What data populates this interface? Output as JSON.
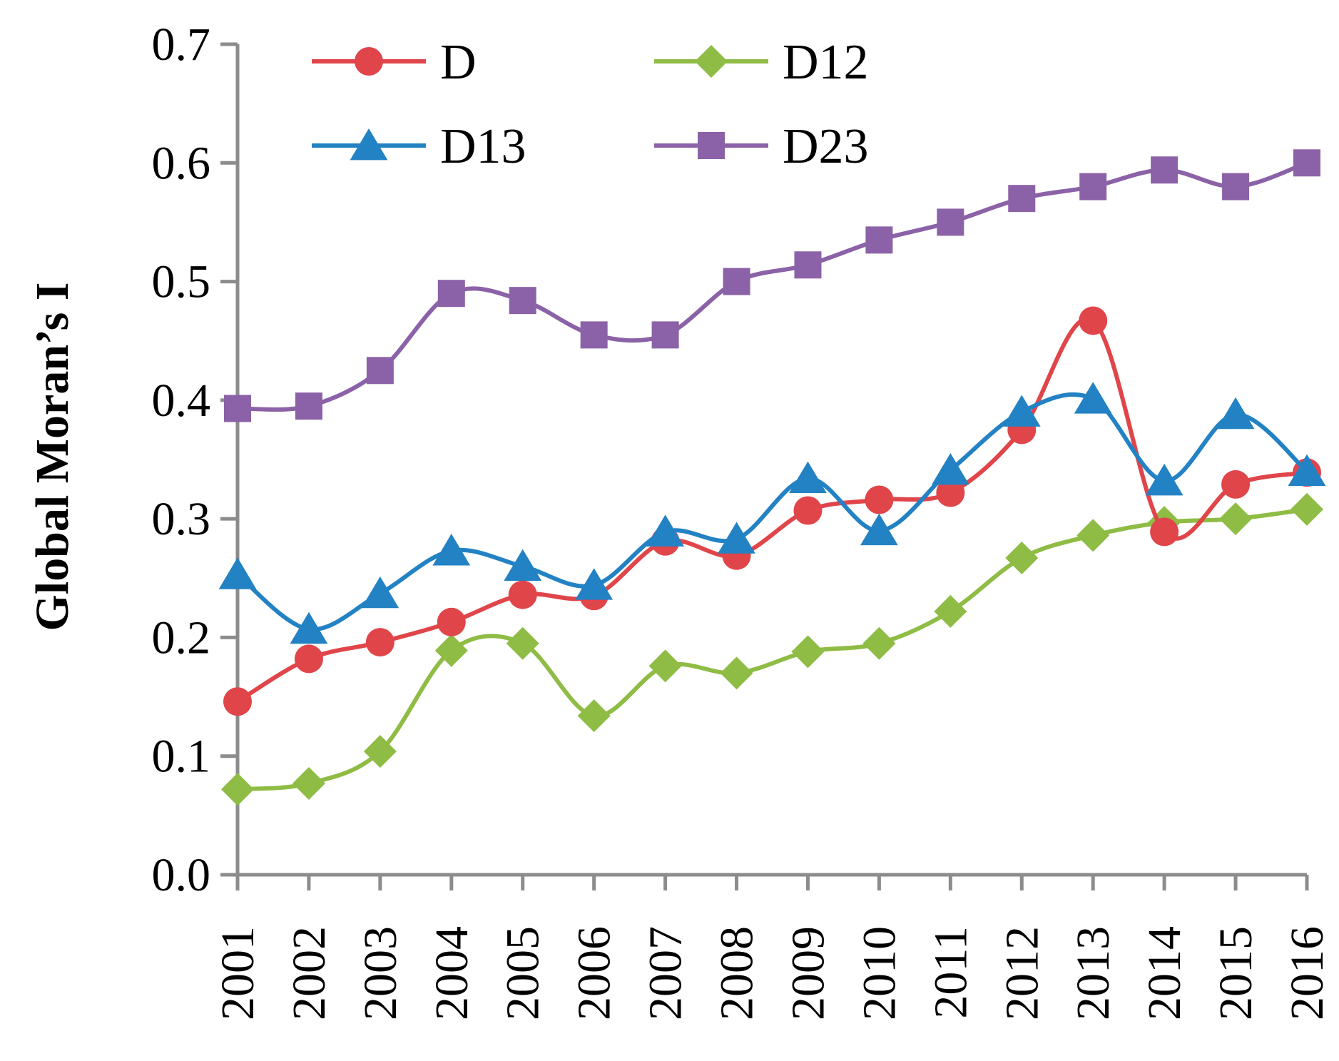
{
  "chart_data": {
    "type": "line",
    "title": "",
    "xlabel": "",
    "ylabel": "Global Moran’s I",
    "ylim": [
      0,
      0.7
    ],
    "yticks": [
      "0.0",
      "0.1",
      "0.2",
      "0.3",
      "0.4",
      "0.5",
      "0.6",
      "0.7"
    ],
    "categories": [
      "2001",
      "2002",
      "2003",
      "2004",
      "2005",
      "2006",
      "2007",
      "2008",
      "2009",
      "2010",
      "2011",
      "2012",
      "2013",
      "2014",
      "2015",
      "2016"
    ],
    "grid": false,
    "legend_position": "top-left",
    "series": [
      {
        "name": "D",
        "color": "#e0454a",
        "marker": "circle",
        "values": [
          0.146,
          0.182,
          0.196,
          0.213,
          0.236,
          0.235,
          0.281,
          0.269,
          0.307,
          0.316,
          0.322,
          0.375,
          0.467,
          0.289,
          0.329,
          0.339
        ]
      },
      {
        "name": "D12",
        "color": "#8fbc45",
        "marker": "diamond",
        "values": [
          0.072,
          0.077,
          0.104,
          0.189,
          0.195,
          0.134,
          0.176,
          0.17,
          0.188,
          0.195,
          0.222,
          0.267,
          0.286,
          0.297,
          0.3,
          0.308
        ]
      },
      {
        "name": "D13",
        "color": "#2382c4",
        "marker": "triangle",
        "values": [
          0.253,
          0.207,
          0.237,
          0.273,
          0.26,
          0.244,
          0.289,
          0.283,
          0.334,
          0.29,
          0.341,
          0.39,
          0.401,
          0.332,
          0.388,
          0.34
        ]
      },
      {
        "name": "D23",
        "color": "#8b62a7",
        "marker": "square",
        "values": [
          0.393,
          0.395,
          0.425,
          0.49,
          0.484,
          0.455,
          0.455,
          0.5,
          0.514,
          0.535,
          0.55,
          0.57,
          0.58,
          0.594,
          0.58,
          0.6
        ]
      }
    ]
  }
}
